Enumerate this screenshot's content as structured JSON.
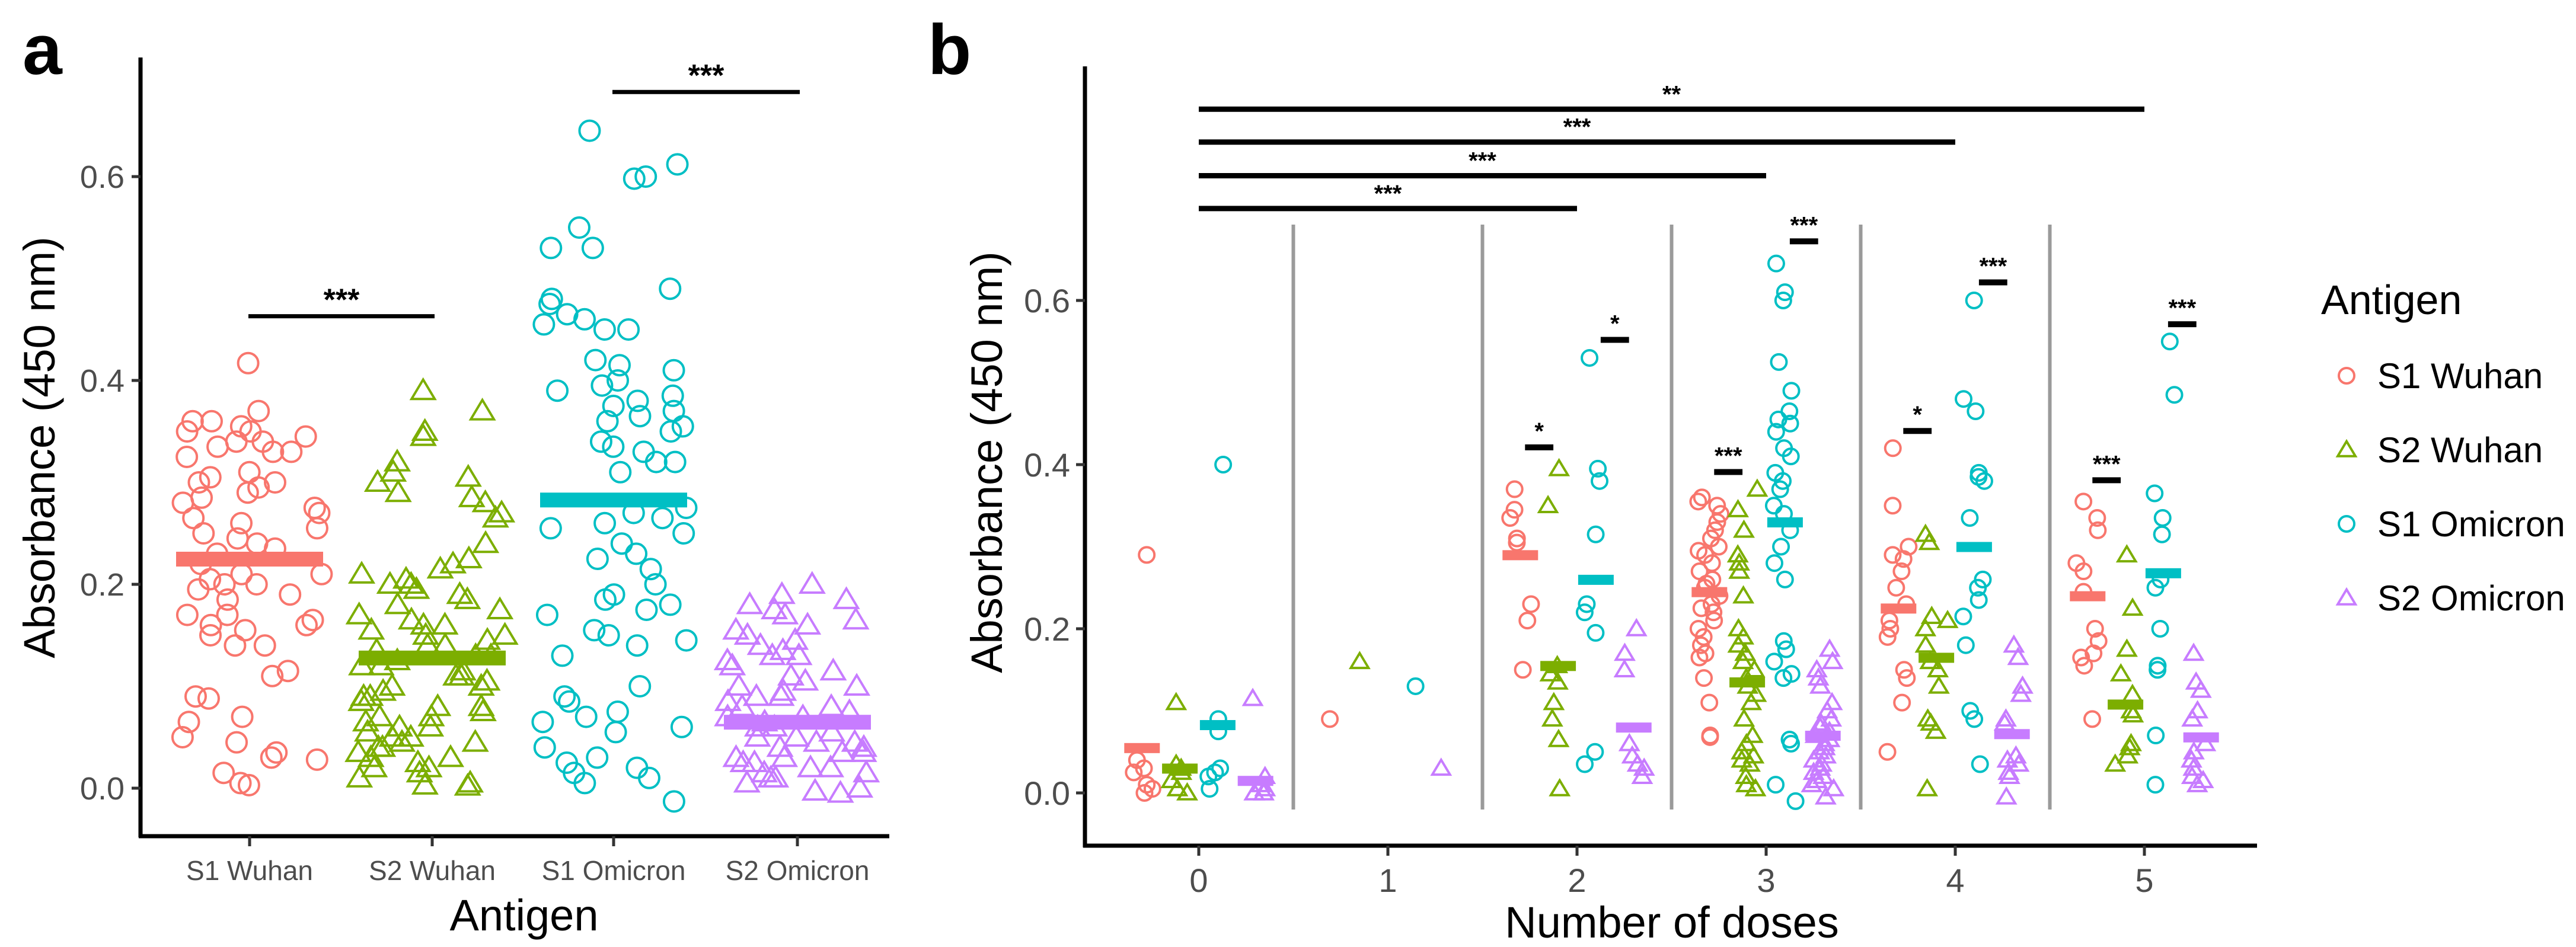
{
  "colors": {
    "S1 Wuhan": "#F8766D",
    "S2 Wuhan": "#7CAE00",
    "S1 Omicron": "#00BFC4",
    "S2 Omicron": "#C77CFF",
    "divider": "#9a9a9a",
    "axis": "#000000"
  },
  "chart_data": [
    {
      "panel_label": "a",
      "type": "scatter",
      "xlabel": "Antigen",
      "ylabel": "Absorbance (450 nm)",
      "ylim": [
        -0.03,
        0.72
      ],
      "yticks": [
        "0.0",
        "0.2",
        "0.4",
        "0.6"
      ],
      "categories": [
        "S1 Wuhan",
        "S2 Wuhan",
        "S1 Omicron",
        "S2 Omicron"
      ],
      "series": [
        {
          "name": "S1 Wuhan",
          "shape": "circle",
          "mean": 0.225,
          "values": [
            0.417,
            0.37,
            0.36,
            0.36,
            0.355,
            0.35,
            0.35,
            0.345,
            0.34,
            0.34,
            0.335,
            0.33,
            0.33,
            0.325,
            0.31,
            0.305,
            0.3,
            0.3,
            0.295,
            0.29,
            0.285,
            0.28,
            0.275,
            0.27,
            0.265,
            0.26,
            0.255,
            0.25,
            0.245,
            0.24,
            0.235,
            0.23,
            0.22,
            0.21,
            0.21,
            0.205,
            0.2,
            0.2,
            0.195,
            0.19,
            0.185,
            0.17,
            0.17,
            0.165,
            0.16,
            0.16,
            0.155,
            0.15,
            0.14,
            0.14,
            0.115,
            0.11,
            0.09,
            0.088,
            0.07,
            0.065,
            0.05,
            0.045,
            0.035,
            0.03,
            0.028,
            0.015,
            0.005,
            0.003
          ]
        },
        {
          "name": "S2 Wuhan",
          "shape": "triangle",
          "mean": 0.128,
          "values": [
            0.39,
            0.37,
            0.35,
            0.345,
            0.32,
            0.31,
            0.305,
            0.3,
            0.29,
            0.285,
            0.28,
            0.27,
            0.265,
            0.24,
            0.225,
            0.22,
            0.215,
            0.21,
            0.205,
            0.2,
            0.2,
            0.195,
            0.19,
            0.185,
            0.18,
            0.175,
            0.17,
            0.165,
            0.16,
            0.16,
            0.155,
            0.15,
            0.15,
            0.145,
            0.14,
            0.14,
            0.135,
            0.13,
            0.13,
            0.125,
            0.12,
            0.12,
            0.115,
            0.11,
            0.11,
            0.105,
            0.1,
            0.1,
            0.095,
            0.09,
            0.09,
            0.085,
            0.08,
            0.08,
            0.075,
            0.07,
            0.07,
            0.065,
            0.06,
            0.06,
            0.055,
            0.05,
            0.05,
            0.045,
            0.045,
            0.04,
            0.04,
            0.035,
            0.03,
            0.03,
            0.025,
            0.02,
            0.02,
            0.015,
            0.01,
            0.005,
            0.003,
            0.002
          ]
        },
        {
          "name": "S1 Omicron",
          "shape": "circle",
          "mean": 0.283,
          "values": [
            0.645,
            0.612,
            0.6,
            0.598,
            0.55,
            0.53,
            0.53,
            0.49,
            0.48,
            0.475,
            0.465,
            0.46,
            0.455,
            0.45,
            0.45,
            0.42,
            0.415,
            0.41,
            0.4,
            0.395,
            0.39,
            0.385,
            0.38,
            0.375,
            0.37,
            0.365,
            0.36,
            0.355,
            0.35,
            0.34,
            0.335,
            0.33,
            0.32,
            0.32,
            0.31,
            0.275,
            0.27,
            0.265,
            0.26,
            0.255,
            0.25,
            0.24,
            0.23,
            0.225,
            0.215,
            0.2,
            0.19,
            0.185,
            0.18,
            0.175,
            0.17,
            0.155,
            0.15,
            0.145,
            0.14,
            0.13,
            0.1,
            0.09,
            0.085,
            0.075,
            0.07,
            0.065,
            0.06,
            0.055,
            0.04,
            0.03,
            0.025,
            0.02,
            0.015,
            0.01,
            0.005,
            -0.013
          ]
        },
        {
          "name": "S2 Omicron",
          "shape": "triangle",
          "mean": 0.065,
          "values": [
            0.2,
            0.19,
            0.185,
            0.18,
            0.175,
            0.17,
            0.165,
            0.16,
            0.155,
            0.15,
            0.145,
            0.14,
            0.135,
            0.13,
            0.13,
            0.125,
            0.12,
            0.115,
            0.11,
            0.105,
            0.1,
            0.1,
            0.095,
            0.09,
            0.09,
            0.085,
            0.08,
            0.08,
            0.075,
            0.07,
            0.07,
            0.065,
            0.06,
            0.06,
            0.055,
            0.05,
            0.05,
            0.045,
            0.045,
            0.04,
            0.04,
            0.035,
            0.035,
            0.03,
            0.03,
            0.025,
            0.025,
            0.02,
            0.02,
            0.015,
            0.015,
            0.01,
            0.01,
            0.005,
            0.0,
            -0.003,
            -0.005
          ]
        }
      ],
      "significance": [
        {
          "from": "S1 Wuhan",
          "to": "S2 Wuhan",
          "y": 0.463,
          "label": "***"
        },
        {
          "from": "S1 Omicron",
          "to": "S2 Omicron",
          "y": 0.683,
          "label": "***"
        }
      ]
    },
    {
      "panel_label": "b",
      "type": "scatter",
      "xlabel": "Number of doses",
      "ylabel": "Absorbance (450 nm)",
      "ylim": [
        -0.03,
        0.86
      ],
      "yticks": [
        "0.0",
        "0.2",
        "0.4",
        "0.6"
      ],
      "x": [
        "0",
        "1",
        "2",
        "3",
        "4",
        "5"
      ],
      "legend": {
        "title": "Antigen",
        "position": "right",
        "entries": [
          "S1 Wuhan",
          "S2 Wuhan",
          "S1 Omicron",
          "S2 Omicron"
        ]
      },
      "groups": [
        {
          "dose": "0",
          "means": {
            "S1 Wuhan": 0.055,
            "S2 Wuhan": 0.03,
            "S1 Omicron": 0.083,
            "S2 Omicron": 0.015
          },
          "values": {
            "S1 Wuhan": [
              0.29,
              0.04,
              0.03,
              0.025,
              0.01,
              0.005,
              0.0
            ],
            "S2 Wuhan": [
              0.11,
              0.035,
              0.03,
              0.025,
              0.015,
              0.005,
              0.0
            ],
            "S1 Omicron": [
              0.4,
              0.09,
              0.075,
              0.03,
              0.025,
              0.02,
              0.005
            ],
            "S2 Omicron": [
              0.115,
              0.02,
              0.01,
              0.005,
              0.0,
              0.0
            ]
          }
        },
        {
          "dose": "1",
          "means": {},
          "values": {
            "S1 Wuhan": [
              0.09
            ],
            "S2 Wuhan": [
              0.16
            ],
            "S1 Omicron": [
              0.13
            ],
            "S2 Omicron": [
              0.03
            ]
          }
        },
        {
          "dose": "2",
          "means": {
            "S1 Wuhan": 0.29,
            "S2 Wuhan": 0.155,
            "S1 Omicron": 0.26,
            "S2 Omicron": 0.08
          },
          "values": {
            "S1 Wuhan": [
              0.37,
              0.345,
              0.335,
              0.31,
              0.305,
              0.23,
              0.21,
              0.15
            ],
            "S2 Wuhan": [
              0.395,
              0.35,
              0.155,
              0.145,
              0.135,
              0.11,
              0.09,
              0.065,
              0.005
            ],
            "S1 Omicron": [
              0.53,
              0.395,
              0.38,
              0.315,
              0.23,
              0.22,
              0.195,
              0.05,
              0.035
            ],
            "S2 Omicron": [
              0.2,
              0.17,
              0.15,
              0.06,
              0.045,
              0.035,
              0.03,
              0.02
            ]
          }
        },
        {
          "dose": "3",
          "means": {
            "S1 Wuhan": 0.245,
            "S2 Wuhan": 0.135,
            "S1 Omicron": 0.33,
            "S2 Omicron": 0.07
          },
          "values": {
            "S1 Wuhan": [
              0.36,
              0.355,
              0.35,
              0.34,
              0.33,
              0.32,
              0.31,
              0.3,
              0.295,
              0.29,
              0.28,
              0.27,
              0.26,
              0.255,
              0.25,
              0.24,
              0.23,
              0.225,
              0.22,
              0.21,
              0.2,
              0.19,
              0.18,
              0.17,
              0.165,
              0.14,
              0.11,
              0.07,
              0.068
            ],
            "S2 Wuhan": [
              0.37,
              0.345,
              0.32,
              0.29,
              0.28,
              0.27,
              0.24,
              0.2,
              0.19,
              0.18,
              0.17,
              0.16,
              0.15,
              0.14,
              0.13,
              0.12,
              0.11,
              0.09,
              0.07,
              0.06,
              0.05,
              0.045,
              0.04,
              0.035,
              0.02,
              0.01,
              0.005
            ],
            "S1 Omicron": [
              0.645,
              0.61,
              0.6,
              0.525,
              0.49,
              0.465,
              0.455,
              0.45,
              0.44,
              0.42,
              0.41,
              0.39,
              0.38,
              0.37,
              0.35,
              0.34,
              0.32,
              0.3,
              0.28,
              0.26,
              0.185,
              0.175,
              0.16,
              0.145,
              0.14,
              0.065,
              0.06,
              0.01,
              -0.01
            ],
            "S2 Omicron": [
              0.175,
              0.16,
              0.15,
              0.14,
              0.13,
              0.11,
              0.1,
              0.09,
              0.085,
              0.08,
              0.075,
              0.07,
              0.065,
              0.06,
              0.055,
              0.05,
              0.045,
              0.04,
              0.035,
              0.03,
              0.025,
              0.02,
              0.015,
              0.01,
              0.005,
              -0.005
            ]
          }
        },
        {
          "dose": "4",
          "means": {
            "S1 Wuhan": 0.225,
            "S2 Wuhan": 0.165,
            "S1 Omicron": 0.3,
            "S2 Omicron": 0.072
          },
          "values": {
            "S1 Wuhan": [
              0.42,
              0.35,
              0.3,
              0.29,
              0.285,
              0.27,
              0.25,
              0.23,
              0.21,
              0.2,
              0.19,
              0.15,
              0.14,
              0.11,
              0.05
            ],
            "S2 Wuhan": [
              0.315,
              0.305,
              0.215,
              0.21,
              0.2,
              0.18,
              0.16,
              0.15,
              0.13,
              0.09,
              0.085,
              0.075,
              0.005
            ],
            "S1 Omicron": [
              0.6,
              0.48,
              0.465,
              0.39,
              0.385,
              0.38,
              0.335,
              0.26,
              0.25,
              0.235,
              0.215,
              0.18,
              0.1,
              0.09,
              0.035
            ],
            "S2 Omicron": [
              0.18,
              0.165,
              0.13,
              0.12,
              0.09,
              0.085,
              0.045,
              0.04,
              0.035,
              0.025,
              0.02,
              -0.005
            ]
          }
        },
        {
          "dose": "5",
          "means": {
            "S1 Wuhan": 0.24,
            "S2 Wuhan": 0.108,
            "S1 Omicron": 0.268,
            "S2 Omicron": 0.068
          },
          "values": {
            "S1 Wuhan": [
              0.355,
              0.335,
              0.32,
              0.28,
              0.27,
              0.245,
              0.2,
              0.185,
              0.17,
              0.165,
              0.155,
              0.09
            ],
            "S2 Wuhan": [
              0.29,
              0.225,
              0.175,
              0.145,
              0.12,
              0.1,
              0.095,
              0.06,
              0.055,
              0.045,
              0.035
            ],
            "S1 Omicron": [
              0.55,
              0.485,
              0.365,
              0.335,
              0.315,
              0.26,
              0.25,
              0.2,
              0.155,
              0.15,
              0.07,
              0.01
            ],
            "S2 Omicron": [
              0.17,
              0.135,
              0.125,
              0.1,
              0.09,
              0.06,
              0.05,
              0.04,
              0.03,
              0.02,
              0.015,
              0.01
            ]
          }
        }
      ],
      "significance_doses": [
        {
          "from": "0",
          "to": "2",
          "y": 0.712,
          "label": "***"
        },
        {
          "from": "0",
          "to": "3",
          "y": 0.752,
          "label": "***"
        },
        {
          "from": "0",
          "to": "4",
          "y": 0.793,
          "label": "***"
        },
        {
          "from": "0",
          "to": "5",
          "y": 0.833,
          "label": "**"
        }
      ],
      "significance_within": [
        {
          "dose": "2",
          "from": "S1 Wuhan",
          "to": "S2 Wuhan",
          "y": 0.421,
          "label": "*"
        },
        {
          "dose": "2",
          "from": "S1 Omicron",
          "to": "S2 Omicron",
          "y": 0.552,
          "label": "*"
        },
        {
          "dose": "3",
          "from": "S1 Wuhan",
          "to": "S2 Wuhan",
          "y": 0.391,
          "label": "***"
        },
        {
          "dose": "3",
          "from": "S1 Omicron",
          "to": "S2 Omicron",
          "y": 0.672,
          "label": "***"
        },
        {
          "dose": "4",
          "from": "S1 Wuhan",
          "to": "S2 Wuhan",
          "y": 0.441,
          "label": "*"
        },
        {
          "dose": "4",
          "from": "S1 Omicron",
          "to": "S2 Omicron",
          "y": 0.622,
          "label": "***"
        },
        {
          "dose": "5",
          "from": "S1 Wuhan",
          "to": "S2 Wuhan",
          "y": 0.381,
          "label": "***"
        },
        {
          "dose": "5",
          "from": "S1 Omicron",
          "to": "S2 Omicron",
          "y": 0.571,
          "label": "***"
        }
      ]
    }
  ]
}
